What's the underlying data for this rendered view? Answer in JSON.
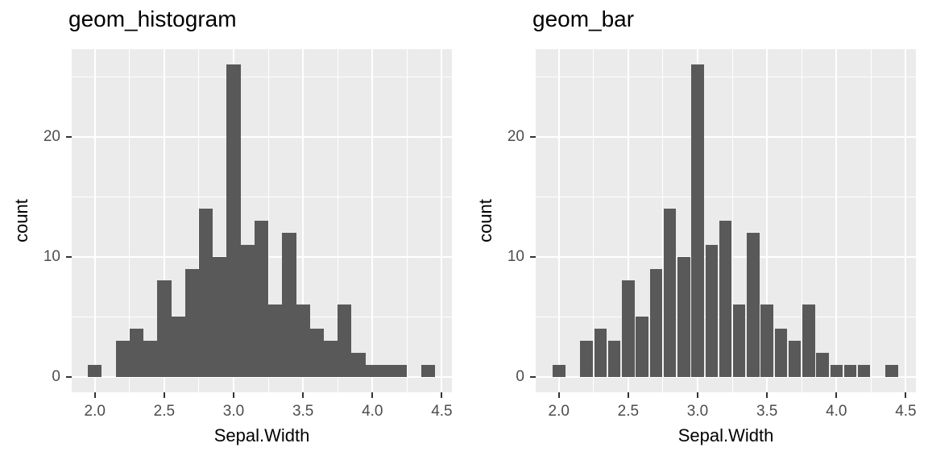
{
  "style": {
    "bar_color": "#595959",
    "panel_bg": "#EBEBEB",
    "grid_color": "#FFFFFF",
    "tick_label_color": "#4D4D4D",
    "tick_mark_color": "#333333",
    "title_color": "#000000",
    "page_bg": "#FFFFFF"
  },
  "chart_data": [
    {
      "type": "bar",
      "variant": "histogram",
      "title": "geom_histogram",
      "xlabel": "Sepal.Width",
      "ylabel": "count",
      "x": [
        2.0,
        2.2,
        2.3,
        2.4,
        2.5,
        2.6,
        2.7,
        2.8,
        2.9,
        3.0,
        3.1,
        3.2,
        3.3,
        3.4,
        3.5,
        3.6,
        3.7,
        3.8,
        3.9,
        4.0,
        4.1,
        4.2,
        4.4
      ],
      "values": [
        1,
        3,
        4,
        3,
        8,
        5,
        9,
        14,
        10,
        26,
        11,
        13,
        6,
        12,
        6,
        4,
        3,
        6,
        2,
        1,
        1,
        1,
        1
      ],
      "bar_width_x": 0.1,
      "x_ticks": [
        "2.0",
        "2.5",
        "3.0",
        "3.5",
        "4.0",
        "4.5"
      ],
      "y_ticks": [
        "0",
        "10",
        "20"
      ],
      "x_minor_ticks": [
        2.25,
        2.75,
        3.25,
        3.75,
        4.25
      ],
      "y_minor_ticks": [
        5,
        15,
        25
      ],
      "x_domain": [
        1.833,
        4.573
      ],
      "y_domain": [
        -1.3,
        27.3
      ],
      "grid": true,
      "legend": "none"
    },
    {
      "type": "bar",
      "variant": "bar",
      "title": "geom_bar",
      "xlabel": "Sepal.Width",
      "ylabel": "count",
      "x": [
        2.0,
        2.2,
        2.3,
        2.4,
        2.5,
        2.6,
        2.7,
        2.8,
        2.9,
        3.0,
        3.1,
        3.2,
        3.3,
        3.4,
        3.5,
        3.6,
        3.7,
        3.8,
        3.9,
        4.0,
        4.1,
        4.2,
        4.4
      ],
      "values": [
        1,
        3,
        4,
        3,
        8,
        5,
        9,
        14,
        10,
        26,
        11,
        13,
        6,
        12,
        6,
        4,
        3,
        6,
        2,
        1,
        1,
        1,
        1
      ],
      "bar_width_x": 0.09,
      "x_ticks": [
        "2.0",
        "2.5",
        "3.0",
        "3.5",
        "4.0",
        "4.5"
      ],
      "y_ticks": [
        "0",
        "10",
        "20"
      ],
      "x_minor_ticks": [
        2.25,
        2.75,
        3.25,
        3.75,
        4.25
      ],
      "y_minor_ticks": [
        5,
        15,
        25
      ],
      "x_domain": [
        1.833,
        4.573
      ],
      "y_domain": [
        -1.3,
        27.3
      ],
      "grid": true,
      "legend": "none"
    }
  ]
}
